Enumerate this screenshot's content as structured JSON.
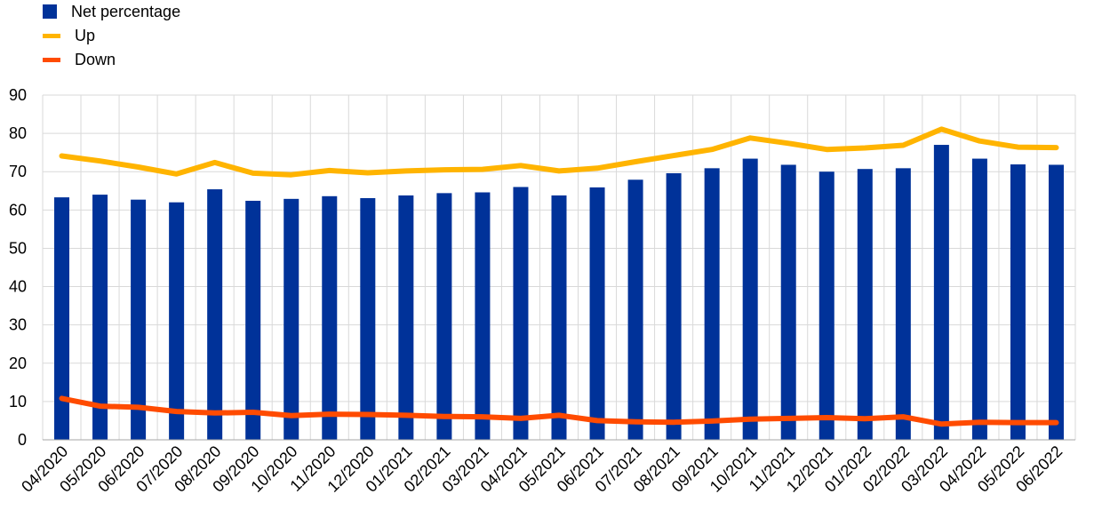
{
  "legend": {
    "items": [
      {
        "label": "Net percentage",
        "kind": "box",
        "color": "#003299"
      },
      {
        "label": "Up",
        "kind": "line",
        "color": "#FFB400"
      },
      {
        "label": "Down",
        "kind": "line",
        "color": "#FF4B00"
      }
    ]
  },
  "chart_data": {
    "type": "bar",
    "categories": [
      "04/2020",
      "05/2020",
      "06/2020",
      "07/2020",
      "08/2020",
      "09/2020",
      "10/2020",
      "11/2020",
      "12/2020",
      "01/2021",
      "02/2021",
      "03/2021",
      "04/2021",
      "05/2021",
      "06/2021",
      "07/2021",
      "08/2021",
      "09/2021",
      "10/2021",
      "11/2021",
      "12/2021",
      "01/2022",
      "02/2022",
      "03/2022",
      "04/2022",
      "05/2022",
      "06/2022"
    ],
    "series": [
      {
        "name": "Net percentage",
        "type": "bar",
        "color": "#003299",
        "values": [
          63.3,
          64.0,
          62.7,
          62.0,
          65.4,
          62.4,
          62.9,
          63.6,
          63.1,
          63.8,
          64.4,
          64.6,
          66.0,
          63.8,
          65.9,
          67.9,
          69.6,
          70.9,
          73.4,
          71.8,
          70.0,
          70.7,
          70.9,
          77.0,
          73.4,
          71.9,
          71.8
        ]
      },
      {
        "name": "Up",
        "type": "line",
        "color": "#FFB400",
        "values": [
          74.1,
          72.8,
          71.2,
          69.4,
          72.4,
          69.6,
          69.2,
          70.3,
          69.7,
          70.2,
          70.5,
          70.6,
          71.6,
          70.2,
          70.9,
          72.6,
          74.2,
          75.8,
          78.8,
          77.4,
          75.8,
          76.2,
          76.9,
          81.1,
          78.0,
          76.4,
          76.3
        ]
      },
      {
        "name": "Down",
        "type": "line",
        "color": "#FF4B00",
        "values": [
          10.8,
          8.8,
          8.5,
          7.4,
          7.0,
          7.2,
          6.3,
          6.7,
          6.6,
          6.4,
          6.1,
          6.0,
          5.6,
          6.4,
          5.0,
          4.7,
          4.6,
          4.9,
          5.4,
          5.6,
          5.8,
          5.5,
          6.0,
          4.1,
          4.6,
          4.5,
          4.5
        ]
      }
    ],
    "ylim": [
      0,
      90
    ],
    "yticks": [
      0,
      10,
      20,
      30,
      40,
      50,
      60,
      70,
      80,
      90
    ],
    "grid": true,
    "legend_position": "top-left"
  }
}
